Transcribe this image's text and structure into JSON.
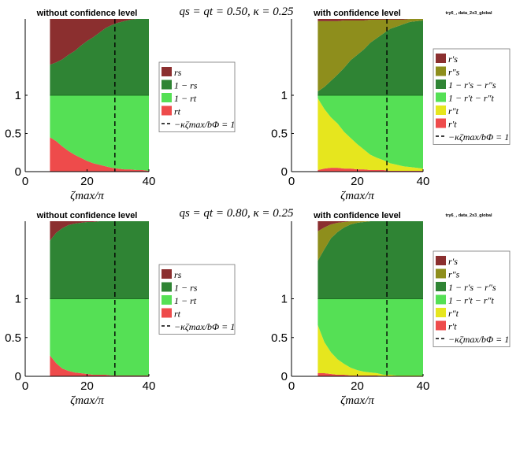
{
  "colors": {
    "dark_red": "#8b2f2f",
    "dark_green": "#2f8434",
    "light_green": "#55e055",
    "red": "#ee4b4b",
    "olive": "#8e8e1c",
    "yellow": "#e6e61e",
    "axis": "#000000"
  },
  "row_titles": [
    "qs = qt = 0.50,  κ = 0.25",
    "qs = qt = 0.80,  κ = 0.25"
  ],
  "chart_data": [
    {
      "type": "area",
      "title": "without confidence level",
      "tag": "",
      "xlabel": "ζmax/π",
      "ylabel": "",
      "xlim": [
        0,
        40
      ],
      "ylim": [
        0,
        2
      ],
      "xticks": [
        "0",
        "20",
        "40"
      ],
      "yticks": [
        {
          "v": 0,
          "label": "0"
        },
        {
          "v": 0.5,
          "label": "0.5"
        },
        {
          "v": 1,
          "label": "1"
        }
      ],
      "threshold_x": 29,
      "x": [
        8,
        10,
        12,
        14,
        16,
        18,
        20,
        22,
        24,
        26,
        28,
        30,
        32,
        34,
        36,
        38,
        40
      ],
      "lower": [
        {
          "key": "rt",
          "color": "red",
          "values": [
            0.45,
            0.4,
            0.33,
            0.27,
            0.22,
            0.18,
            0.14,
            0.11,
            0.09,
            0.07,
            0.05,
            0.04,
            0.03,
            0.03,
            0.02,
            0.02,
            0.01
          ]
        },
        {
          "key": "one_minus_rt",
          "color": "light_green",
          "fill_to": 1
        }
      ],
      "upper": [
        {
          "key": "one_minus_rs",
          "color": "dark_green",
          "fill_from": 1
        },
        {
          "key": "rs",
          "color": "dark_red",
          "values": [
            0.6,
            0.57,
            0.53,
            0.47,
            0.42,
            0.35,
            0.29,
            0.24,
            0.18,
            0.12,
            0.08,
            0.05,
            0.03,
            0.01,
            0.0,
            0.0,
            0.0
          ]
        }
      ],
      "legend": [
        {
          "label": "rs",
          "color": "dark_red"
        },
        {
          "label": "1 − rs",
          "color": "dark_green"
        },
        {
          "label": "1 − rt",
          "color": "light_green"
        },
        {
          "label": "rt",
          "color": "red"
        },
        {
          "label": "−κζmax/bΦ = 1",
          "line": true
        }
      ]
    },
    {
      "type": "area",
      "title": "with confidence level",
      "tag": "try6_, data_2x3_global",
      "xlabel": "ζmax/π",
      "ylabel": "",
      "xlim": [
        0,
        40
      ],
      "ylim": [
        0,
        2
      ],
      "xticks": [
        "0",
        "20",
        "40"
      ],
      "yticks": [
        {
          "v": 0,
          "label": "0"
        },
        {
          "v": 0.5,
          "label": "0.5"
        },
        {
          "v": 1,
          "label": "1"
        }
      ],
      "threshold_x": 29,
      "x": [
        8,
        10,
        12,
        14,
        16,
        18,
        20,
        22,
        24,
        26,
        28,
        30,
        32,
        34,
        36,
        38,
        40
      ],
      "lower": [
        {
          "key": "rt_p",
          "color": "red",
          "values": [
            0.02,
            0.04,
            0.05,
            0.05,
            0.04,
            0.04,
            0.03,
            0.03,
            0.02,
            0.02,
            0.02,
            0.01,
            0.01,
            0.01,
            0.01,
            0.01,
            0.01
          ]
        },
        {
          "key": "rt_pp",
          "color": "yellow",
          "values": [
            0.94,
            0.78,
            0.66,
            0.58,
            0.48,
            0.4,
            0.33,
            0.26,
            0.2,
            0.16,
            0.13,
            0.1,
            0.08,
            0.06,
            0.05,
            0.04,
            0.03
          ]
        },
        {
          "key": "one_minus_rt",
          "color": "light_green",
          "fill_to": 1
        }
      ],
      "upper": [
        {
          "key": "one_minus_rs",
          "color": "dark_green",
          "fill_from": 1
        },
        {
          "key": "rs_pp",
          "color": "olive",
          "values": [
            0.92,
            0.86,
            0.78,
            0.7,
            0.62,
            0.52,
            0.45,
            0.38,
            0.3,
            0.24,
            0.18,
            0.12,
            0.09,
            0.06,
            0.04,
            0.03,
            0.02
          ]
        },
        {
          "key": "rs_p",
          "color": "dark_red",
          "values": [
            0.03,
            0.03,
            0.03,
            0.03,
            0.02,
            0.02,
            0.02,
            0.02,
            0.01,
            0.01,
            0.01,
            0.01,
            0.01,
            0.01,
            0.0,
            0.0,
            0.0
          ]
        }
      ],
      "legend": [
        {
          "label": "r′s",
          "color": "dark_red"
        },
        {
          "label": "r″s",
          "color": "olive"
        },
        {
          "label": "1 − r′s − r″s",
          "color": "dark_green"
        },
        {
          "label": "1 − r′t − r″t",
          "color": "light_green"
        },
        {
          "label": "r″t",
          "color": "yellow"
        },
        {
          "label": "r′t",
          "color": "red"
        },
        {
          "label": "−κζmax/bΦ = 1",
          "line": true
        }
      ]
    },
    {
      "type": "area",
      "title": "without confidence level",
      "tag": "",
      "xlabel": "ζmax/π",
      "ylabel": "",
      "xlim": [
        0,
        40
      ],
      "ylim": [
        0,
        2
      ],
      "xticks": [
        "0",
        "20",
        "40"
      ],
      "yticks": [
        {
          "v": 0,
          "label": "0"
        },
        {
          "v": 0.5,
          "label": "0.5"
        },
        {
          "v": 1,
          "label": "1"
        }
      ],
      "threshold_x": 29,
      "x": [
        8,
        10,
        12,
        14,
        16,
        18,
        20,
        22,
        24,
        26,
        28,
        30,
        32,
        34,
        36,
        38,
        40
      ],
      "lower": [
        {
          "key": "rt",
          "color": "red",
          "values": [
            0.27,
            0.17,
            0.1,
            0.07,
            0.05,
            0.04,
            0.03,
            0.02,
            0.02,
            0.02,
            0.01,
            0.01,
            0.01,
            0.01,
            0.01,
            0.01,
            0.01
          ]
        },
        {
          "key": "one_minus_rt",
          "color": "light_green",
          "fill_to": 1
        }
      ],
      "upper": [
        {
          "key": "one_minus_rs",
          "color": "dark_green",
          "fill_from": 1
        },
        {
          "key": "rs",
          "color": "dark_red",
          "values": [
            0.25,
            0.15,
            0.09,
            0.05,
            0.03,
            0.02,
            0.01,
            0.01,
            0.0,
            0.0,
            0.0,
            0.0,
            0.0,
            0.0,
            0.0,
            0.0,
            0.0
          ]
        }
      ],
      "legend": [
        {
          "label": "rs",
          "color": "dark_red"
        },
        {
          "label": "1 − rs",
          "color": "dark_green"
        },
        {
          "label": "1 − rt",
          "color": "light_green"
        },
        {
          "label": "rt",
          "color": "red"
        },
        {
          "label": "−κζmax/bΦ = 1",
          "line": true
        }
      ]
    },
    {
      "type": "area",
      "title": "with confidence level",
      "tag": "try6_, data_2x3_global",
      "xlabel": "ζmax/π",
      "ylabel": "",
      "xlim": [
        0,
        40
      ],
      "ylim": [
        0,
        2
      ],
      "xticks": [
        "0",
        "20",
        "40"
      ],
      "yticks": [
        {
          "v": 0,
          "label": "0"
        },
        {
          "v": 0.5,
          "label": "0.5"
        },
        {
          "v": 1,
          "label": "1"
        }
      ],
      "threshold_x": 29,
      "x": [
        8,
        10,
        12,
        14,
        16,
        18,
        20,
        22,
        24,
        26,
        28,
        30,
        32,
        34,
        36,
        38,
        40
      ],
      "lower": [
        {
          "key": "rt_p",
          "color": "red",
          "values": [
            0.04,
            0.04,
            0.03,
            0.02,
            0.02,
            0.01,
            0.01,
            0.01,
            0.01,
            0.01,
            0.0,
            0.0,
            0.0,
            0.0,
            0.0,
            0.0,
            0.0
          ]
        },
        {
          "key": "rt_pp",
          "color": "yellow",
          "values": [
            0.62,
            0.4,
            0.28,
            0.2,
            0.14,
            0.1,
            0.07,
            0.05,
            0.04,
            0.03,
            0.02,
            0.02,
            0.01,
            0.01,
            0.01,
            0.01,
            0.01
          ]
        },
        {
          "key": "one_minus_rt",
          "color": "light_green",
          "fill_to": 1
        }
      ],
      "upper": [
        {
          "key": "one_minus_rs",
          "color": "dark_green",
          "fill_from": 1
        },
        {
          "key": "rs_pp",
          "color": "olive",
          "values": [
            0.38,
            0.28,
            0.18,
            0.12,
            0.07,
            0.04,
            0.02,
            0.01,
            0.0,
            0.0,
            0.0,
            0.0,
            0.0,
            0.0,
            0.0,
            0.0,
            0.0
          ]
        },
        {
          "key": "rs_p",
          "color": "dark_red",
          "values": [
            0.13,
            0.08,
            0.04,
            0.02,
            0.01,
            0.0,
            0.0,
            0.0,
            0.0,
            0.0,
            0.0,
            0.0,
            0.0,
            0.0,
            0.0,
            0.0,
            0.0
          ]
        }
      ],
      "legend": [
        {
          "label": "r′s",
          "color": "dark_red"
        },
        {
          "label": "r″s",
          "color": "olive"
        },
        {
          "label": "1 − r′s − r″s",
          "color": "dark_green"
        },
        {
          "label": "1 − r′t − r″t",
          "color": "light_green"
        },
        {
          "label": "r″t",
          "color": "yellow"
        },
        {
          "label": "r′t",
          "color": "red"
        },
        {
          "label": "−κζmax/bΦ = 1",
          "line": true
        }
      ]
    }
  ]
}
